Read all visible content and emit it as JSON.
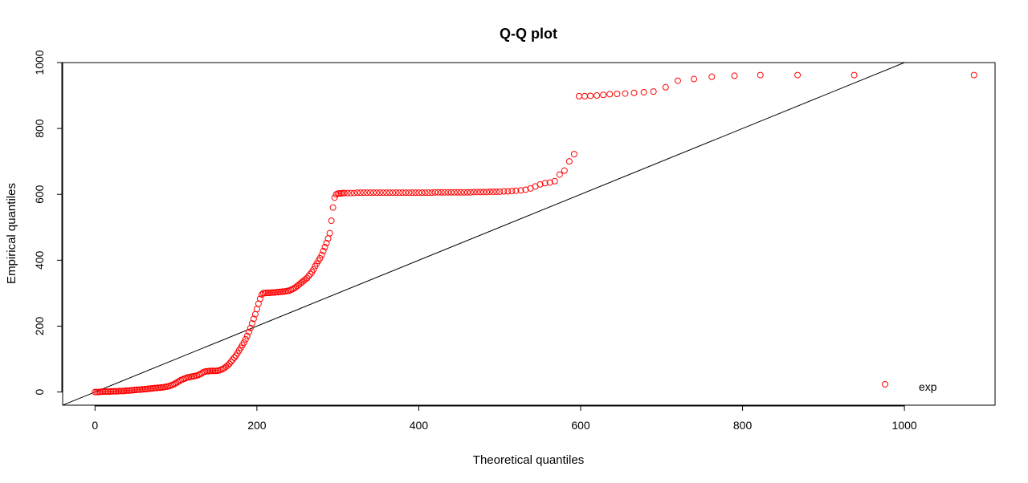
{
  "chart_data": {
    "type": "scatter",
    "title": "Q-Q plot",
    "xlabel": "Theoretical quantiles",
    "ylabel": "Empirical quantiles",
    "xlim": [
      -40,
      1112
    ],
    "ylim": [
      -40,
      1000
    ],
    "xticks": [
      "0",
      "200",
      "400",
      "600",
      "800",
      "1000"
    ],
    "yticks": [
      "0",
      "200",
      "400",
      "600",
      "800",
      "1000"
    ],
    "xtick_values": [
      0,
      200,
      400,
      600,
      800,
      1000
    ],
    "ytick_values": [
      0,
      200,
      400,
      600,
      800,
      1000
    ],
    "reference_line": {
      "from": [
        -40,
        -40
      ],
      "to": [
        1000,
        1000
      ]
    },
    "point_color": "#ff0000",
    "line_color": "#000000",
    "legend": {
      "position": "bottom-right",
      "entries": [
        "exp"
      ]
    },
    "series": [
      {
        "name": "exp",
        "points": [
          [
            0,
            0
          ],
          [
            2,
            0
          ],
          [
            4,
            0
          ],
          [
            6,
            0
          ],
          [
            8,
            1
          ],
          [
            10,
            1
          ],
          [
            12,
            1
          ],
          [
            14,
            1
          ],
          [
            16,
            1
          ],
          [
            18,
            1
          ],
          [
            20,
            2
          ],
          [
            22,
            2
          ],
          [
            24,
            2
          ],
          [
            26,
            2
          ],
          [
            28,
            2
          ],
          [
            30,
            3
          ],
          [
            32,
            3
          ],
          [
            34,
            3
          ],
          [
            36,
            3
          ],
          [
            38,
            4
          ],
          [
            40,
            4
          ],
          [
            42,
            4
          ],
          [
            44,
            5
          ],
          [
            46,
            5
          ],
          [
            48,
            6
          ],
          [
            50,
            6
          ],
          [
            52,
            7
          ],
          [
            54,
            7
          ],
          [
            56,
            7
          ],
          [
            58,
            8
          ],
          [
            60,
            8
          ],
          [
            62,
            9
          ],
          [
            64,
            9
          ],
          [
            66,
            10
          ],
          [
            68,
            10
          ],
          [
            70,
            11
          ],
          [
            72,
            11
          ],
          [
            74,
            12
          ],
          [
            76,
            12
          ],
          [
            78,
            13
          ],
          [
            80,
            13
          ],
          [
            82,
            14
          ],
          [
            84,
            14
          ],
          [
            86,
            15
          ],
          [
            88,
            16
          ],
          [
            90,
            17
          ],
          [
            92,
            18
          ],
          [
            94,
            20
          ],
          [
            96,
            22
          ],
          [
            98,
            24
          ],
          [
            100,
            27
          ],
          [
            102,
            30
          ],
          [
            104,
            33
          ],
          [
            106,
            36
          ],
          [
            108,
            38
          ],
          [
            110,
            40
          ],
          [
            112,
            42
          ],
          [
            114,
            44
          ],
          [
            116,
            45
          ],
          [
            118,
            46
          ],
          [
            120,
            47
          ],
          [
            122,
            48
          ],
          [
            124,
            49
          ],
          [
            126,
            50
          ],
          [
            128,
            52
          ],
          [
            130,
            54
          ],
          [
            132,
            57
          ],
          [
            134,
            60
          ],
          [
            136,
            62
          ],
          [
            138,
            63
          ],
          [
            140,
            63
          ],
          [
            142,
            64
          ],
          [
            144,
            64
          ],
          [
            146,
            64
          ],
          [
            148,
            64
          ],
          [
            150,
            64
          ],
          [
            152,
            65
          ],
          [
            154,
            66
          ],
          [
            156,
            68
          ],
          [
            158,
            70
          ],
          [
            160,
            73
          ],
          [
            162,
            77
          ],
          [
            164,
            81
          ],
          [
            166,
            86
          ],
          [
            168,
            92
          ],
          [
            170,
            98
          ],
          [
            172,
            104
          ],
          [
            174,
            110
          ],
          [
            176,
            118
          ],
          [
            178,
            126
          ],
          [
            180,
            134
          ],
          [
            182,
            142
          ],
          [
            184,
            150
          ],
          [
            186,
            160
          ],
          [
            188,
            170
          ],
          [
            190,
            182
          ],
          [
            192,
            194
          ],
          [
            194,
            208
          ],
          [
            196,
            222
          ],
          [
            198,
            236
          ],
          [
            200,
            252
          ],
          [
            202,
            268
          ],
          [
            204,
            283
          ],
          [
            206,
            296
          ],
          [
            208,
            300
          ],
          [
            210,
            300
          ],
          [
            212,
            301
          ],
          [
            214,
            301
          ],
          [
            216,
            301
          ],
          [
            218,
            302
          ],
          [
            220,
            302
          ],
          [
            222,
            302
          ],
          [
            224,
            303
          ],
          [
            226,
            303
          ],
          [
            228,
            304
          ],
          [
            230,
            304
          ],
          [
            232,
            305
          ],
          [
            234,
            305
          ],
          [
            236,
            306
          ],
          [
            238,
            307
          ],
          [
            240,
            308
          ],
          [
            242,
            310
          ],
          [
            244,
            312
          ],
          [
            246,
            315
          ],
          [
            248,
            318
          ],
          [
            250,
            322
          ],
          [
            252,
            326
          ],
          [
            254,
            330
          ],
          [
            256,
            334
          ],
          [
            258,
            338
          ],
          [
            260,
            342
          ],
          [
            262,
            346
          ],
          [
            264,
            352
          ],
          [
            266,
            358
          ],
          [
            268,
            364
          ],
          [
            270,
            372
          ],
          [
            272,
            382
          ],
          [
            274,
            390
          ],
          [
            276,
            398
          ],
          [
            278,
            406
          ],
          [
            280,
            416
          ],
          [
            282,
            428
          ],
          [
            284,
            440
          ],
          [
            286,
            452
          ],
          [
            288,
            466
          ],
          [
            290,
            482
          ],
          [
            292,
            520
          ],
          [
            294,
            560
          ],
          [
            296,
            590
          ],
          [
            298,
            600
          ],
          [
            300,
            602
          ],
          [
            302,
            603
          ],
          [
            304,
            603
          ],
          [
            306,
            604
          ],
          [
            308,
            604
          ],
          [
            312,
            604
          ],
          [
            316,
            604
          ],
          [
            320,
            604
          ],
          [
            324,
            605
          ],
          [
            328,
            605
          ],
          [
            332,
            605
          ],
          [
            336,
            605
          ],
          [
            340,
            605
          ],
          [
            344,
            605
          ],
          [
            348,
            605
          ],
          [
            352,
            605
          ],
          [
            356,
            605
          ],
          [
            360,
            605
          ],
          [
            364,
            605
          ],
          [
            368,
            605
          ],
          [
            372,
            605
          ],
          [
            376,
            605
          ],
          [
            380,
            605
          ],
          [
            384,
            605
          ],
          [
            388,
            605
          ],
          [
            392,
            605
          ],
          [
            396,
            605
          ],
          [
            400,
            605
          ],
          [
            404,
            605
          ],
          [
            408,
            605
          ],
          [
            412,
            605
          ],
          [
            416,
            605
          ],
          [
            420,
            606
          ],
          [
            424,
            606
          ],
          [
            428,
            606
          ],
          [
            432,
            606
          ],
          [
            436,
            606
          ],
          [
            440,
            606
          ],
          [
            444,
            606
          ],
          [
            448,
            606
          ],
          [
            452,
            606
          ],
          [
            456,
            606
          ],
          [
            460,
            606
          ],
          [
            464,
            606
          ],
          [
            468,
            607
          ],
          [
            472,
            607
          ],
          [
            476,
            607
          ],
          [
            480,
            607
          ],
          [
            484,
            607
          ],
          [
            488,
            608
          ],
          [
            492,
            608
          ],
          [
            496,
            608
          ],
          [
            500,
            608
          ],
          [
            505,
            609
          ],
          [
            510,
            609
          ],
          [
            515,
            610
          ],
          [
            520,
            611
          ],
          [
            526,
            612
          ],
          [
            532,
            614
          ],
          [
            538,
            618
          ],
          [
            544,
            624
          ],
          [
            550,
            630
          ],
          [
            556,
            634
          ],
          [
            562,
            636
          ],
          [
            568,
            640
          ],
          [
            574,
            660
          ],
          [
            580,
            672
          ],
          [
            586,
            700
          ],
          [
            592,
            722
          ],
          [
            598,
            898
          ],
          [
            605,
            898
          ],
          [
            612,
            899
          ],
          [
            620,
            900
          ],
          [
            628,
            902
          ],
          [
            636,
            904
          ],
          [
            645,
            905
          ],
          [
            655,
            906
          ],
          [
            666,
            908
          ],
          [
            678,
            910
          ],
          [
            690,
            912
          ],
          [
            705,
            925
          ],
          [
            720,
            945
          ],
          [
            740,
            950
          ],
          [
            762,
            957
          ],
          [
            790,
            960
          ],
          [
            822,
            962
          ],
          [
            868,
            962
          ],
          [
            938,
            962
          ],
          [
            1086,
            962
          ]
        ]
      }
    ]
  }
}
